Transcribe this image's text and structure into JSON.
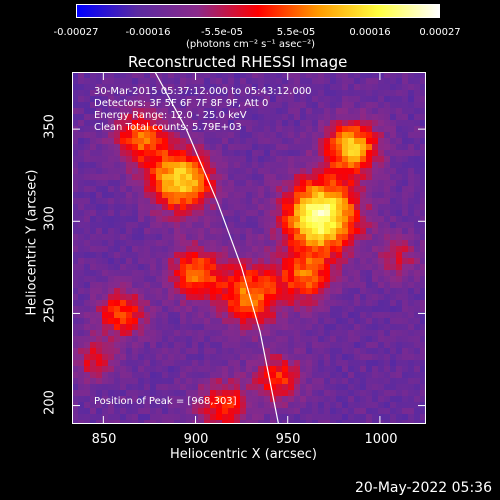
{
  "colorbar": {
    "ticks": [
      "-0.00027",
      "-0.00016",
      "-5.5e-05",
      "5.5e-05",
      "0.00016",
      "0.00027"
    ],
    "units": "(photons cm⁻² s⁻¹ asec⁻²)"
  },
  "chart_data": {
    "type": "heatmap",
    "title": "Reconstructed RHESSI Image",
    "xlabel": "Heliocentric X (arcsec)",
    "ylabel": "Heliocentric Y (arcsec)",
    "xlim": [
      833,
      1025
    ],
    "ylim": [
      190,
      381
    ],
    "xticks": [
      "850",
      "900",
      "950",
      "1000"
    ],
    "yticks": [
      "200",
      "250",
      "300",
      "350"
    ],
    "x_tick_values": [
      850,
      900,
      950,
      1000
    ],
    "y_tick_values": [
      200,
      250,
      300,
      350
    ],
    "colorbar_range": [
      -0.00027,
      0.00027
    ],
    "colormap": [
      "#0000ff",
      "#5a2aa0",
      "#8a2a8a",
      "#ff0000",
      "#ff9a00",
      "#ffff40",
      "#ffffff"
    ],
    "annotations": {
      "time": "30-Mar-2015 05:37:12.000 to 05:43:12.000",
      "detectors": "Detectors: 3F 5F 6F 7F 8F 9F, Att 0",
      "energy": "Energy Range: 12.0 - 25.0 keV",
      "clean": "Clean     Total counts: 5.79E+03",
      "peak": "Position of Peak = [968,303]"
    },
    "peak_position": [
      968,
      303
    ],
    "limb_curve": [
      [
        878,
        381
      ],
      [
        895,
        350
      ],
      [
        912,
        310
      ],
      [
        925,
        275
      ],
      [
        935,
        240
      ],
      [
        945,
        190
      ]
    ],
    "sources": [
      {
        "x": 968,
        "y": 303,
        "amp": 1.0,
        "r": 14
      },
      {
        "x": 985,
        "y": 340,
        "amp": 0.75,
        "r": 10
      },
      {
        "x": 892,
        "y": 322,
        "amp": 0.8,
        "r": 12
      },
      {
        "x": 900,
        "y": 272,
        "amp": 0.55,
        "r": 10
      },
      {
        "x": 930,
        "y": 260,
        "amp": 0.6,
        "r": 12
      },
      {
        "x": 960,
        "y": 270,
        "amp": 0.5,
        "r": 10
      },
      {
        "x": 870,
        "y": 345,
        "amp": 0.55,
        "r": 10
      },
      {
        "x": 860,
        "y": 250,
        "amp": 0.5,
        "r": 9
      },
      {
        "x": 915,
        "y": 200,
        "amp": 0.45,
        "r": 10
      },
      {
        "x": 945,
        "y": 215,
        "amp": 0.45,
        "r": 9
      },
      {
        "x": 845,
        "y": 225,
        "amp": 0.35,
        "r": 8
      },
      {
        "x": 1010,
        "y": 280,
        "amp": 0.3,
        "r": 8
      }
    ]
  },
  "footer": {
    "datestamp": "20-May-2022 05:36"
  }
}
